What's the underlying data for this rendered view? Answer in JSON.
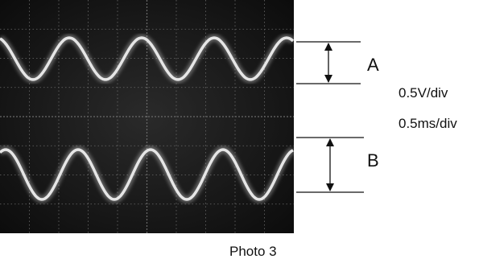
{
  "trace_labels": {
    "a": "A",
    "b": "B"
  },
  "scale": {
    "volts_per_div": "0.5V/div",
    "time_per_div": "0.5ms/div"
  },
  "caption": "Photo 3",
  "colors": {
    "screen": "#141414",
    "trace": "#e6e6e6",
    "graticule": "#6a6a6a",
    "annotation": "#111111"
  }
}
